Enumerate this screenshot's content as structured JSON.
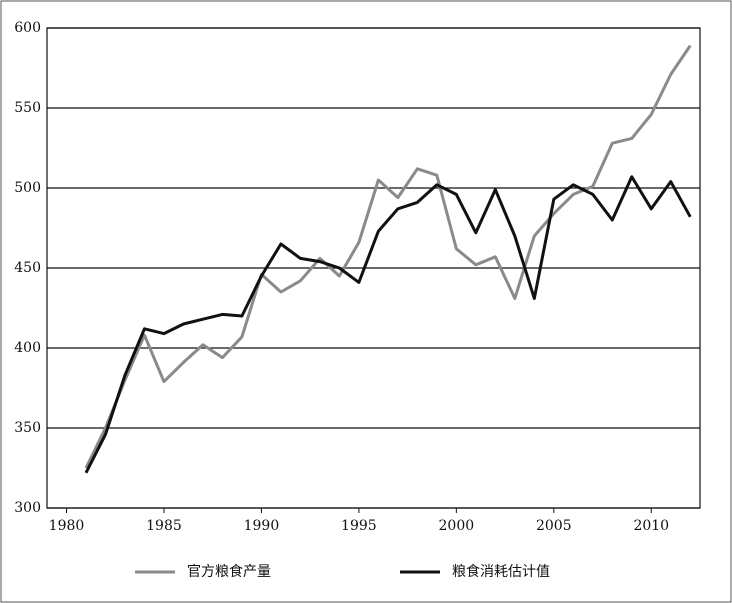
{
  "chart_data": {
    "type": "line",
    "x": [
      1981,
      1982,
      1983,
      1984,
      1985,
      1986,
      1987,
      1988,
      1989,
      1990,
      1991,
      1992,
      1993,
      1994,
      1995,
      1996,
      1997,
      1998,
      1999,
      2000,
      2001,
      2002,
      2003,
      2004,
      2005,
      2006,
      2007,
      2008,
      2009,
      2010,
      2011,
      2012
    ],
    "series": [
      {
        "name": "官方粮食产量",
        "color": "#8a8a8a",
        "values": [
          325,
          350,
          380,
          408,
          379,
          391,
          402,
          394,
          407,
          446,
          435,
          442,
          456,
          445,
          466,
          505,
          494,
          512,
          508,
          462,
          452,
          457,
          431,
          470,
          484,
          496,
          501,
          528,
          531,
          546,
          571,
          589
        ]
      },
      {
        "name": "粮食消耗估计值",
        "color": "#111111",
        "values": [
          322,
          346,
          383,
          412,
          409,
          415,
          418,
          421,
          420,
          445,
          465,
          456,
          454,
          450,
          441,
          473,
          487,
          491,
          502,
          496,
          472,
          499,
          470,
          431,
          493,
          502,
          496,
          480,
          507,
          487,
          504,
          482
        ]
      }
    ],
    "xlim": [
      1979,
      2012.5
    ],
    "xticks": [
      1980,
      1985,
      1990,
      1995,
      2000,
      2005,
      2010
    ],
    "ylim": [
      300,
      600
    ],
    "yticks": [
      300,
      350,
      400,
      450,
      500,
      550,
      600
    ],
    "grid": true,
    "legend": "bottom"
  }
}
